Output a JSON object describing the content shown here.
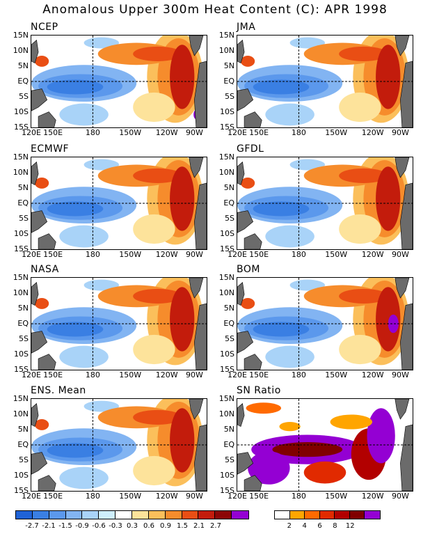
{
  "title": "Anomalous Upper 300m Heat Content (C): APR 1998",
  "panels": [
    {
      "name": "NCEP",
      "kind": "anom"
    },
    {
      "name": "JMA",
      "kind": "anom"
    },
    {
      "name": "ECMWF",
      "kind": "anom"
    },
    {
      "name": "GFDL",
      "kind": "anom"
    },
    {
      "name": "NASA",
      "kind": "anom"
    },
    {
      "name": "BOM",
      "kind": "anom"
    },
    {
      "name": "ENS. Mean",
      "kind": "anom"
    },
    {
      "name": "SN Ratio",
      "kind": "snr"
    }
  ],
  "lat_labels": [
    "15N",
    "10N",
    "5N",
    "EQ",
    "5S",
    "10S",
    "15S"
  ],
  "lon_labels": [
    "120E",
    "150E",
    "180",
    "150W",
    "120W",
    "90W"
  ],
  "colors": {
    "anom_scale": [
      "#1f62d6",
      "#3a7fe3",
      "#5b98ec",
      "#82b4f2",
      "#a9d3f8",
      "#ceeefc",
      "#ffffff",
      "#fde39b",
      "#fbbf5b",
      "#f68c2c",
      "#e94e14",
      "#c31c0c",
      "#8c0606",
      "#9400d3"
    ],
    "snr_scale": [
      "#ffffff",
      "#ffa500",
      "#ff6a00",
      "#e12a00",
      "#b20000",
      "#800000",
      "#9400d3"
    ],
    "land": "#6b6b6b"
  },
  "anom_colorbar_labels": [
    "-2.7",
    "-2.1",
    "-1.5",
    "-0.9",
    "-0.6",
    "-0.3",
    "0.3",
    "0.6",
    "0.9",
    "1.5",
    "2.1",
    "2.7"
  ],
  "snr_colorbar_labels": [
    "2",
    "4",
    "6",
    "8",
    "12"
  ]
}
